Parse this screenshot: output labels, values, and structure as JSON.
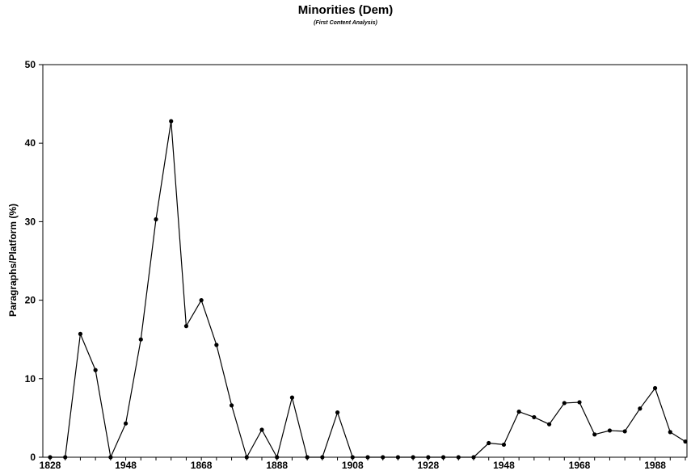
{
  "chart_data": {
    "type": "line",
    "title": "Minorities (Dem)",
    "subtitle": "(First Content Analysis)",
    "xlabel": "",
    "ylabel": "Paragraphs/Platform (%)",
    "ylim": [
      0,
      50
    ],
    "yticks": [
      0,
      10,
      20,
      30,
      40,
      50
    ],
    "xtick_labels": [
      "1828",
      "1948",
      "1868",
      "1888",
      "1908",
      "1928",
      "1948",
      "1968",
      "1988"
    ],
    "grid": false,
    "legend": "none",
    "line_color": "#000000",
    "series": [
      {
        "values": [
          0,
          0,
          15.7,
          11.1,
          0,
          4.3,
          15,
          30.3,
          42.8,
          16.7,
          20,
          14.3,
          6.6,
          0,
          3.5,
          0,
          7.6,
          0,
          0,
          5.7,
          0,
          0,
          0,
          0,
          0,
          0,
          0,
          0,
          0,
          1.8,
          1.6,
          5.8,
          5.1,
          4.2,
          6.9,
          7,
          2.9,
          3.4,
          3.3,
          6.2,
          8.8,
          3.2,
          2
        ]
      }
    ]
  }
}
